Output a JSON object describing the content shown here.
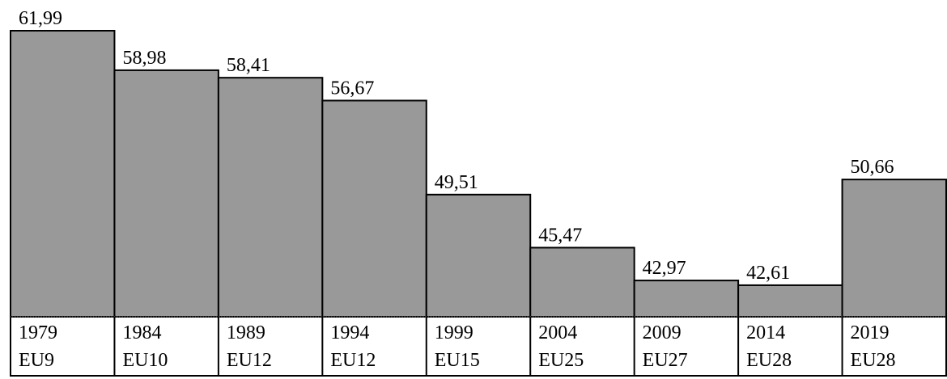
{
  "chart_data": {
    "type": "bar",
    "categories": [
      "1979",
      "1984",
      "1989",
      "1994",
      "1999",
      "2004",
      "2009",
      "2014",
      "2019"
    ],
    "groups": [
      "EU9",
      "EU10",
      "EU12",
      "EU12",
      "EU15",
      "EU25",
      "EU27",
      "EU28",
      "EU28"
    ],
    "values": [
      61.99,
      58.98,
      58.41,
      56.67,
      49.51,
      45.47,
      42.97,
      42.61,
      50.66
    ],
    "value_labels": [
      "61,99",
      "58,98",
      "58,41",
      "56,67",
      "49,51",
      "45,47",
      "42,97",
      "42,61",
      "50,66"
    ],
    "color": "#999999"
  }
}
